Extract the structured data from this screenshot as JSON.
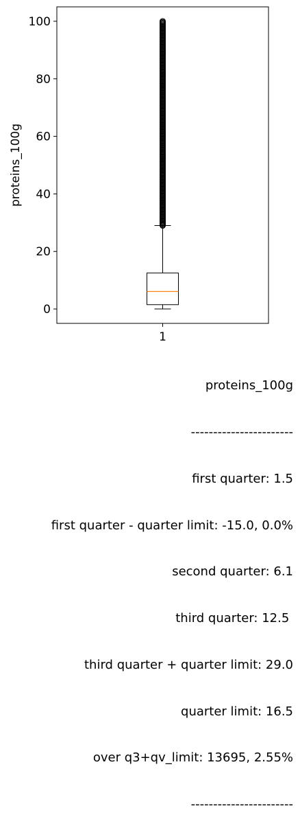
{
  "chart_data": {
    "type": "box",
    "ylabel": "proteins_100g",
    "xticks": [
      "1"
    ],
    "ylim": [
      -5,
      105
    ],
    "yticks": [
      0,
      20,
      40,
      60,
      80,
      100
    ],
    "series": [
      {
        "q1": 1.5,
        "median": 6.1,
        "q3": 12.5,
        "whisker_low": 0,
        "whisker_high": 29.0,
        "outliers_min": 29.0,
        "outliers_max": 100,
        "box_color": "#000000",
        "median_color": "#ff7f0e"
      }
    ]
  },
  "stats": {
    "title": "proteins_100g",
    "sep_top": "-----------------------",
    "first_quarter": "first quarter: 1.5",
    "first_limit": "first quarter - quarter limit: -15.0, 0.0%",
    "second_quarter": "second quarter: 6.1",
    "third_quarter": "third quarter: 12.5 ",
    "third_limit": "third quarter + quarter limit: 29.0",
    "quarter_limit": "quarter limit: 16.5",
    "over_limit": "over q3+qv_limit: 13695, 2.55%",
    "sep_bottom": "-----------------------"
  }
}
